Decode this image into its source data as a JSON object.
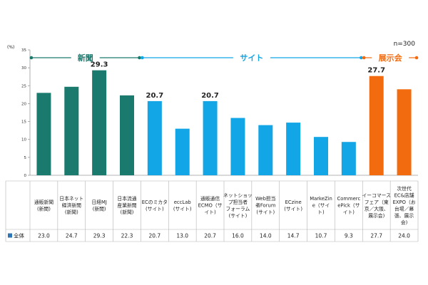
{
  "chart_data": {
    "type": "bar",
    "note": "n=300",
    "y_unit": "(%)",
    "ylim": [
      0,
      35
    ],
    "yticks": [
      0,
      5,
      10,
      15,
      20,
      25,
      30,
      35
    ],
    "grid": false,
    "categories": [
      "通販新聞\n(新聞)",
      "日本ネット\n経済新聞\n(新聞)",
      "日経MJ\n(新聞)",
      "日本流通\n産業新聞\n(新聞)",
      "ECのミカタ\n(サイト)",
      "eccLab\n(サイト)",
      "通販通信\nECMO（サ\nイト)",
      "ネットショッ\nプ担当者\nフォーラム\n(サイト)",
      "Web担当\n者Forum\n(サイト)",
      "ECzine\n(サイト)",
      "MarkeZin\ne（サイ\nト)",
      "Commerc\nePick（サ\nイト)",
      "イーコマース\nフェア（東\n京／大阪、\n展示会)",
      "次世代\nEC&店舗\nEXPO（お\n台場／幕\n張、展示\n会)"
    ],
    "series": [
      {
        "name": "全体",
        "values": [
          23.0,
          24.7,
          29.3,
          22.3,
          20.7,
          13.0,
          20.7,
          16.0,
          14.0,
          14.7,
          10.7,
          9.3,
          27.7,
          24.0
        ]
      }
    ],
    "bar_groups": [
      "新聞",
      "新聞",
      "新聞",
      "新聞",
      "サイト",
      "サイト",
      "サイト",
      "サイト",
      "サイト",
      "サイト",
      "サイト",
      "サイト",
      "展示会",
      "展示会"
    ],
    "group_labels": [
      {
        "label": "新聞",
        "start": 0,
        "end": 3
      },
      {
        "label": "サイト",
        "start": 4,
        "end": 11
      },
      {
        "label": "展示会",
        "start": 12,
        "end": 13
      }
    ],
    "group_colors": {
      "新聞": "#1a7a6e",
      "サイト": "#12a6e6",
      "展示会": "#f26b0f"
    },
    "data_labels": [
      {
        "index": 2,
        "text": "29.3"
      },
      {
        "index": 4,
        "text": "20.7"
      },
      {
        "index": 6,
        "text": "20.7"
      },
      {
        "index": 12,
        "text": "27.7"
      }
    ],
    "table_row_label": "全体",
    "table_values": [
      "23.0",
      "24.7",
      "29.3",
      "22.3",
      "20.7",
      "13.0",
      "20.7",
      "16.0",
      "14.0",
      "14.7",
      "10.7",
      "9.3",
      "27.7",
      "24.0"
    ],
    "legend_swatch_color": "#2e75b6"
  }
}
